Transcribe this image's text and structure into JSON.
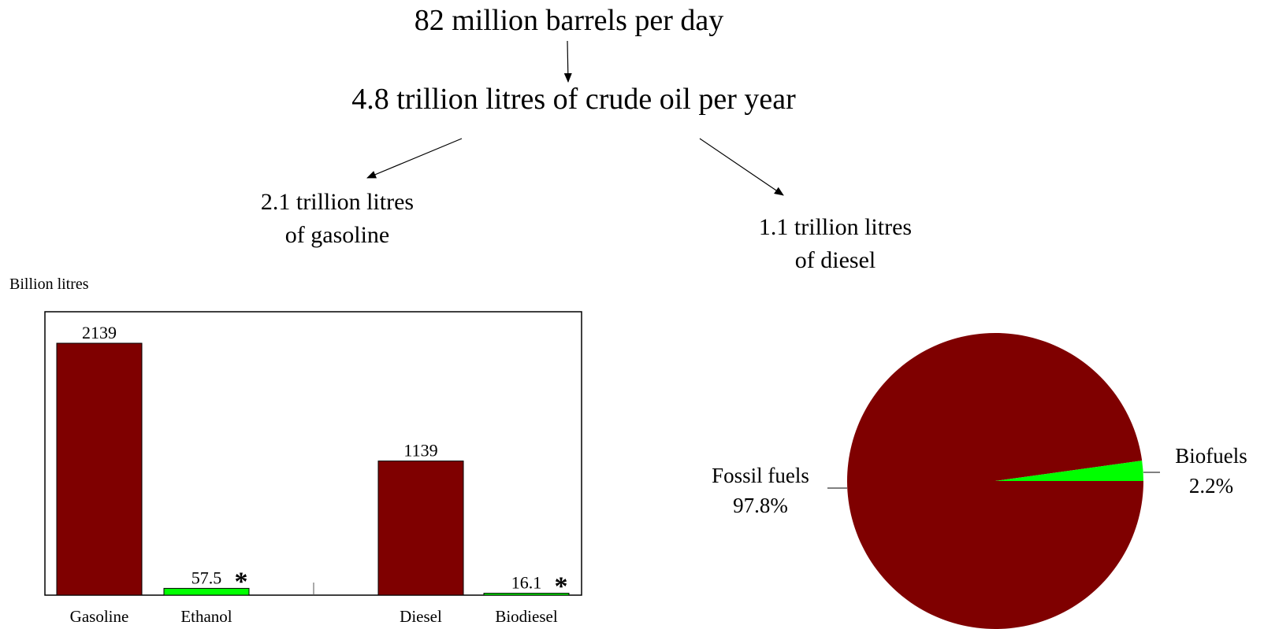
{
  "flow": {
    "top": "82 million barrels per day",
    "crude": "4.8 trillion litres of crude oil per year",
    "gasoline_line1": "2.1 trillion litres",
    "gasoline_line2": "of gasoline",
    "diesel_line1": "1.1 trillion litres",
    "diesel_line2": "of diesel"
  },
  "colors": {
    "fossil": "#7f0000",
    "bio": "#00ff00"
  },
  "chart_data": [
    {
      "type": "bar",
      "ylabel": "Billion litres",
      "categories": [
        "Gasoline",
        "Ethanol",
        "Diesel",
        "Biodiesel"
      ],
      "values": [
        2139,
        57.5,
        1139,
        16.1
      ],
      "value_labels": [
        "2139",
        "57.5",
        "1139",
        "16.1"
      ],
      "asterisk": [
        false,
        true,
        false,
        true
      ],
      "ylim": [
        0,
        2500
      ],
      "colors": [
        "#7f0000",
        "#00ff00",
        "#7f0000",
        "#00ff00"
      ],
      "grid": false
    },
    {
      "type": "pie",
      "slices": [
        {
          "name": "Fossil fuels",
          "pct_label": "97.8%",
          "value": 97.8,
          "color": "#7f0000"
        },
        {
          "name": "Biofuels",
          "pct_label": "2.2%",
          "value": 2.2,
          "color": "#00ff00"
        }
      ]
    }
  ]
}
